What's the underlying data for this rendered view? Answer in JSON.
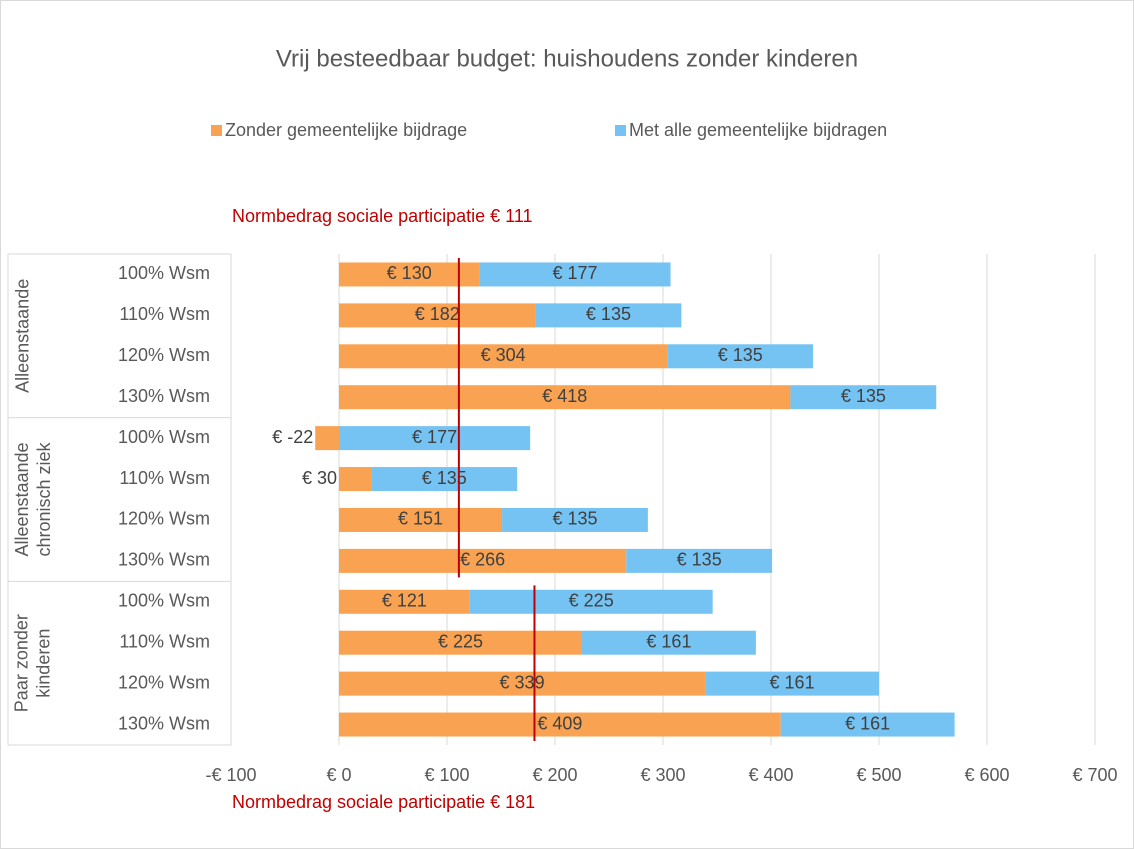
{
  "chart_data": {
    "type": "stacked-bar-horizontal",
    "title": "Vrij besteedbaar budget: huishoudens zonder kinderen",
    "groups": [
      {
        "label": [
          "Alleenstaande"
        ],
        "categories": [
          "100% Wsm",
          "110% Wsm",
          "120% Wsm",
          "130% Wsm"
        ]
      },
      {
        "label": [
          "Alleenstaande",
          "chronisch ziek"
        ],
        "categories": [
          "100% Wsm",
          "110% Wsm",
          "120% Wsm",
          "130% Wsm"
        ]
      },
      {
        "label": [
          "Paar zonder",
          "kinderen"
        ],
        "categories": [
          "100% Wsm",
          "110% Wsm",
          "120% Wsm",
          "130% Wsm"
        ]
      }
    ],
    "series": [
      {
        "name": "Zonder gemeentelijke bijdrage",
        "color": "#f9a352",
        "values": [
          130,
          182,
          304,
          418,
          -22,
          30,
          151,
          266,
          121,
          225,
          339,
          409
        ],
        "value_labels": [
          "€ 130",
          "€ 182",
          "€ 304",
          "€ 418",
          "€ -22",
          "€ 30",
          "€ 151",
          "€ 266",
          "€ 121",
          "€ 225",
          "€ 339",
          "€ 409"
        ]
      },
      {
        "name": "Met alle gemeentelijke bijdragen",
        "color": "#75c3f3",
        "values": [
          177,
          135,
          135,
          135,
          177,
          135,
          135,
          135,
          225,
          161,
          161,
          161
        ],
        "value_labels": [
          "€ 177",
          "€ 135",
          "€ 135",
          "€ 135",
          "€ 177",
          "€ 135",
          "€ 135",
          "€ 135",
          "€ 225",
          "€ 161",
          "€ 161",
          "€ 161"
        ]
      }
    ],
    "xlim": [
      -100,
      700
    ],
    "xticks": [
      {
        "value": -100,
        "label": "-€ 100"
      },
      {
        "value": 0,
        "label": "€ 0"
      },
      {
        "value": 100,
        "label": "€ 100"
      },
      {
        "value": 200,
        "label": "€ 200"
      },
      {
        "value": 300,
        "label": "€ 300"
      },
      {
        "value": 400,
        "label": "€ 400"
      },
      {
        "value": 500,
        "label": "€ 500"
      },
      {
        "value": 600,
        "label": "€ 600"
      },
      {
        "value": 700,
        "label": "€ 700"
      }
    ],
    "grid": true,
    "legend": "top",
    "reference_lines": [
      {
        "label": "Normbedrag sociale participatie € 111",
        "value": 111,
        "groups": [
          0,
          1
        ],
        "label_position": "top",
        "color": "#c00000"
      },
      {
        "label": "Normbedrag sociale participatie € 181",
        "value": 181,
        "groups": [
          2
        ],
        "label_position": "bottom",
        "color": "#c00000"
      }
    ]
  }
}
